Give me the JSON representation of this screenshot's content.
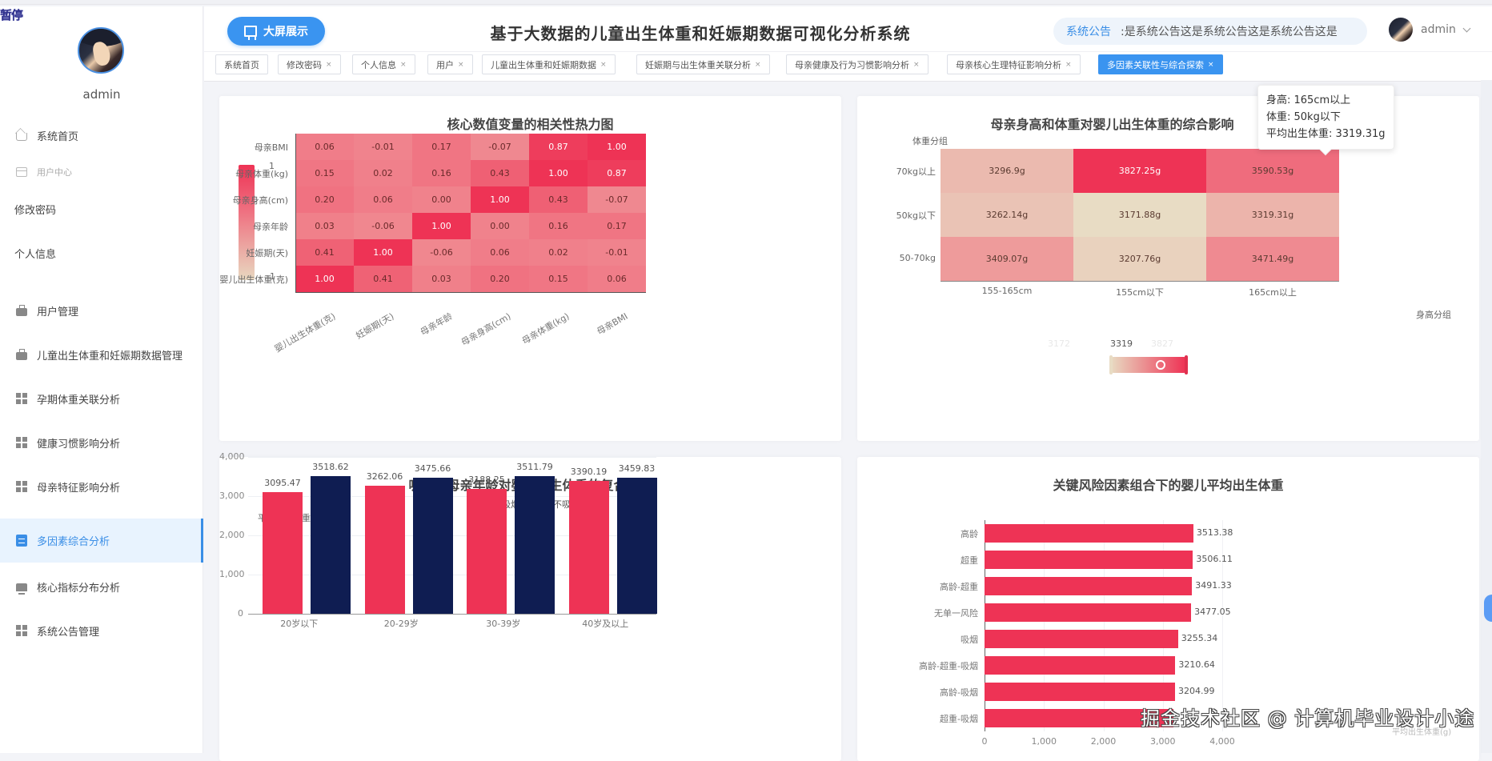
{
  "overlay": {
    "pause_label": "暂停"
  },
  "sidebar": {
    "username": "admin",
    "items": [
      {
        "label": "系统首页",
        "icon": "home-icon",
        "type": "icon"
      },
      {
        "label": "用户中心",
        "icon": "card-icon",
        "type": "section"
      },
      {
        "label": "修改密码",
        "type": "plain"
      },
      {
        "label": "个人信息",
        "type": "plain"
      },
      {
        "label": "用户管理",
        "icon": "briefcase-icon",
        "type": "icon"
      },
      {
        "label": "儿童出生体重和妊娠期数据管理",
        "icon": "briefcase-icon",
        "type": "icon"
      },
      {
        "label": "孕期体重关联分析",
        "icon": "grid-icon",
        "type": "icon"
      },
      {
        "label": "健康习惯影响分析",
        "icon": "grid-icon",
        "type": "icon"
      },
      {
        "label": "母亲特征影响分析",
        "icon": "grid-icon",
        "type": "icon"
      },
      {
        "label": "多因素综合分析",
        "icon": "clipboard-icon",
        "type": "icon",
        "active": true
      },
      {
        "label": "核心指标分布分析",
        "icon": "monitor-icon",
        "type": "icon"
      },
      {
        "label": "系统公告管理",
        "icon": "grid-icon",
        "type": "icon"
      }
    ]
  },
  "header": {
    "big_screen_label": "大屏展示",
    "title": "基于大数据的儿童出生体重和妊娠期数据可视化分析系统",
    "notice_label": "系统公告",
    "notice_text": ":是系统公告这是系统公告这是系统公告这是",
    "user_name": "admin"
  },
  "tabs": [
    {
      "label": "系统首页",
      "closable": false
    },
    {
      "label": "修改密码",
      "closable": true
    },
    {
      "label": "个人信息",
      "closable": true
    },
    {
      "label": "用户",
      "closable": true
    },
    {
      "label": "儿童出生体重和妊娠期数据",
      "closable": true
    },
    {
      "label": "妊娠期与出生体重关联分析",
      "closable": true
    },
    {
      "label": "母亲健康及行为习惯影响分析",
      "closable": true
    },
    {
      "label": "母亲核心生理特征影响分析",
      "closable": true
    },
    {
      "label": "多因素关联性与综合探索",
      "closable": true,
      "active": true
    }
  ],
  "colors": {
    "accent": "#3a94f0",
    "bar_red": "#ee3355",
    "bar_navy": "#0f1d52",
    "heat_low": "#e8dcc4",
    "heat_high": "#ee3355"
  },
  "chart_data": [
    {
      "type": "heatmap",
      "title": "核心数值变量的相关性热力图",
      "x_categories": [
        "婴儿出生体重(克)",
        "妊娠期(天)",
        "母亲年龄",
        "母亲身高(cm)",
        "母亲体重(kg)",
        "母亲BMI"
      ],
      "y_categories": [
        "母亲BMI",
        "母亲体重(kg)",
        "母亲身高(cm)",
        "母亲年龄",
        "妊娠期(天)",
        "婴儿出生体重(克)"
      ],
      "values": [
        [
          "0.06",
          "-0.01",
          "0.17",
          "-0.07",
          "0.87",
          "1.00"
        ],
        [
          "0.15",
          "0.02",
          "0.16",
          "0.43",
          "1.00",
          "0.87"
        ],
        [
          "0.20",
          "0.06",
          "0.00",
          "1.00",
          "0.43",
          "-0.07"
        ],
        [
          "0.03",
          "-0.06",
          "1.00",
          "0.00",
          "0.16",
          "0.17"
        ],
        [
          "0.41",
          "1.00",
          "-0.06",
          "0.06",
          "0.02",
          "-0.01"
        ],
        [
          "1.00",
          "0.41",
          "0.03",
          "0.20",
          "0.15",
          "0.06"
        ]
      ],
      "visual_map": {
        "max_label": "1",
        "min_label": "-1"
      }
    },
    {
      "type": "heatmap",
      "title": "母亲身高和体重对婴儿出生体重的综合影响",
      "xlabel": "身高分组",
      "ylabel": "体重分组",
      "x_categories": [
        "155-165cm",
        "155cm以下",
        "165cm以上"
      ],
      "y_categories": [
        "70kg以上",
        "50kg以下",
        "50-70kg"
      ],
      "values": [
        [
          "3296.9g",
          "3827.25g",
          "3590.53g"
        ],
        [
          "3262.14g",
          "3171.88g",
          "3319.31g"
        ],
        [
          "3409.07g",
          "3207.76g",
          "3471.49g"
        ]
      ],
      "visual_map": {
        "min": "3172",
        "max": "3827",
        "current": "3319"
      },
      "tooltip": {
        "line1": "身高: 165cm以上",
        "line2": "体重: 50kg以下",
        "line3": "平均出生体重: 3319.31g"
      }
    },
    {
      "type": "bar",
      "title": "吸烟与母亲年龄对婴儿出生体重的复合影响",
      "ylabel": "平均出生体重(g)",
      "categories": [
        "20岁以下",
        "20-29岁",
        "30-39岁",
        "40岁及以上"
      ],
      "series": [
        {
          "name": "吸烟",
          "values": [
            3095.47,
            3262.06,
            3188.25,
            3390.19
          ],
          "labels": [
            "3095.47",
            "3262.06",
            "3188.25",
            "3390.19"
          ]
        },
        {
          "name": "不吸烟",
          "values": [
            3518.62,
            3475.66,
            3511.79,
            3459.83
          ],
          "labels": [
            "3518.62",
            "3475.66",
            "3511.79",
            "3459.83"
          ]
        }
      ],
      "yticks": [
        "4,000",
        "3,000",
        "2,000",
        "1,000",
        "0"
      ],
      "ylim": [
        0,
        4000
      ],
      "legend_position": "top"
    },
    {
      "type": "bar",
      "orientation": "horizontal",
      "title": "关键风险因素组合下的婴儿平均出生体重",
      "xlabel": "平均出生体重(g)",
      "categories": [
        "高龄",
        "超重",
        "高龄-超重",
        "无单一风险",
        "吸烟",
        "高龄-超重-吸烟",
        "高龄-吸烟",
        "超重-吸烟"
      ],
      "values": [
        3513.38,
        3506.11,
        3491.33,
        3477.05,
        3255.34,
        3210.64,
        3204.99,
        3180
      ],
      "labels": [
        "3513.38",
        "3506.11",
        "3491.33",
        "3477.05",
        "3255.34",
        "3210.64",
        "3204.99",
        ""
      ],
      "xticks": [
        "0",
        "1,000",
        "2,000",
        "3,000",
        "4,000"
      ],
      "xlim": [
        0,
        4000
      ]
    }
  ],
  "watermark": "掘金技术社区 @ 计算机毕业设计小途"
}
